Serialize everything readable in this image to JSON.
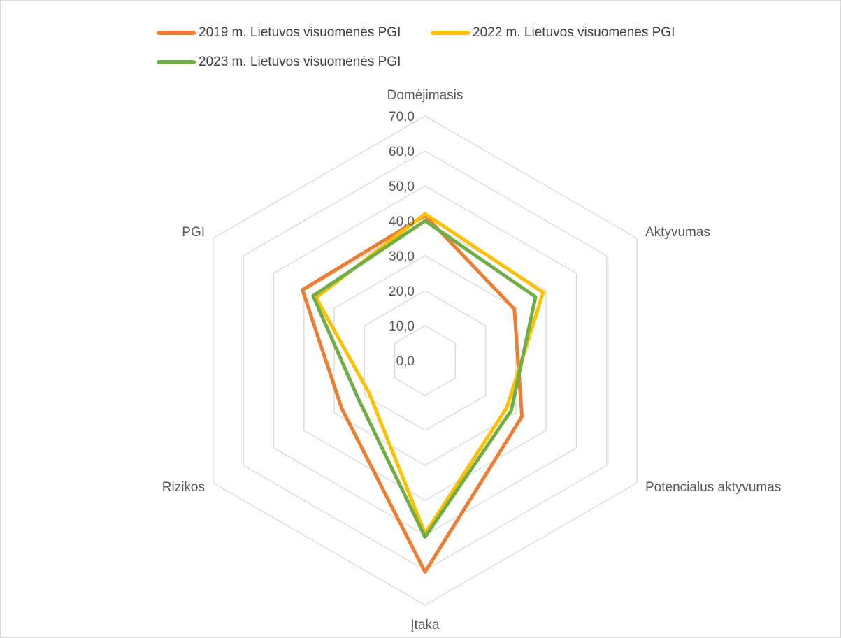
{
  "chart_data": {
    "type": "radar",
    "axes": [
      "Domėjimasis",
      "Aktyvumas",
      "Potencialus aktyvumas",
      "Įtaka",
      "Rizikos",
      "PGI"
    ],
    "range": [
      0,
      70
    ],
    "ticks": [
      "0,0",
      "10,0",
      "20,0",
      "30,0",
      "40,0",
      "50,0",
      "60,0",
      "70,0"
    ],
    "grid": true,
    "legend_position": "top",
    "series": [
      {
        "name": "2019 m. Lietuvos visuomenės PGI",
        "color": "#ED7D31",
        "values": [
          41.5,
          29.5,
          32.0,
          60.5,
          27.5,
          40.5
        ]
      },
      {
        "name": "2022 m. Lietuvos visuomenės PGI",
        "color": "#FFC000",
        "values": [
          42.0,
          39.0,
          27.0,
          49.5,
          18.5,
          36.0
        ]
      },
      {
        "name": "2023 m. Lietuvos visuomenės PGI",
        "color": "#70AD47",
        "values": [
          40.0,
          36.5,
          28.5,
          50.5,
          22.0,
          37.0
        ]
      }
    ]
  }
}
